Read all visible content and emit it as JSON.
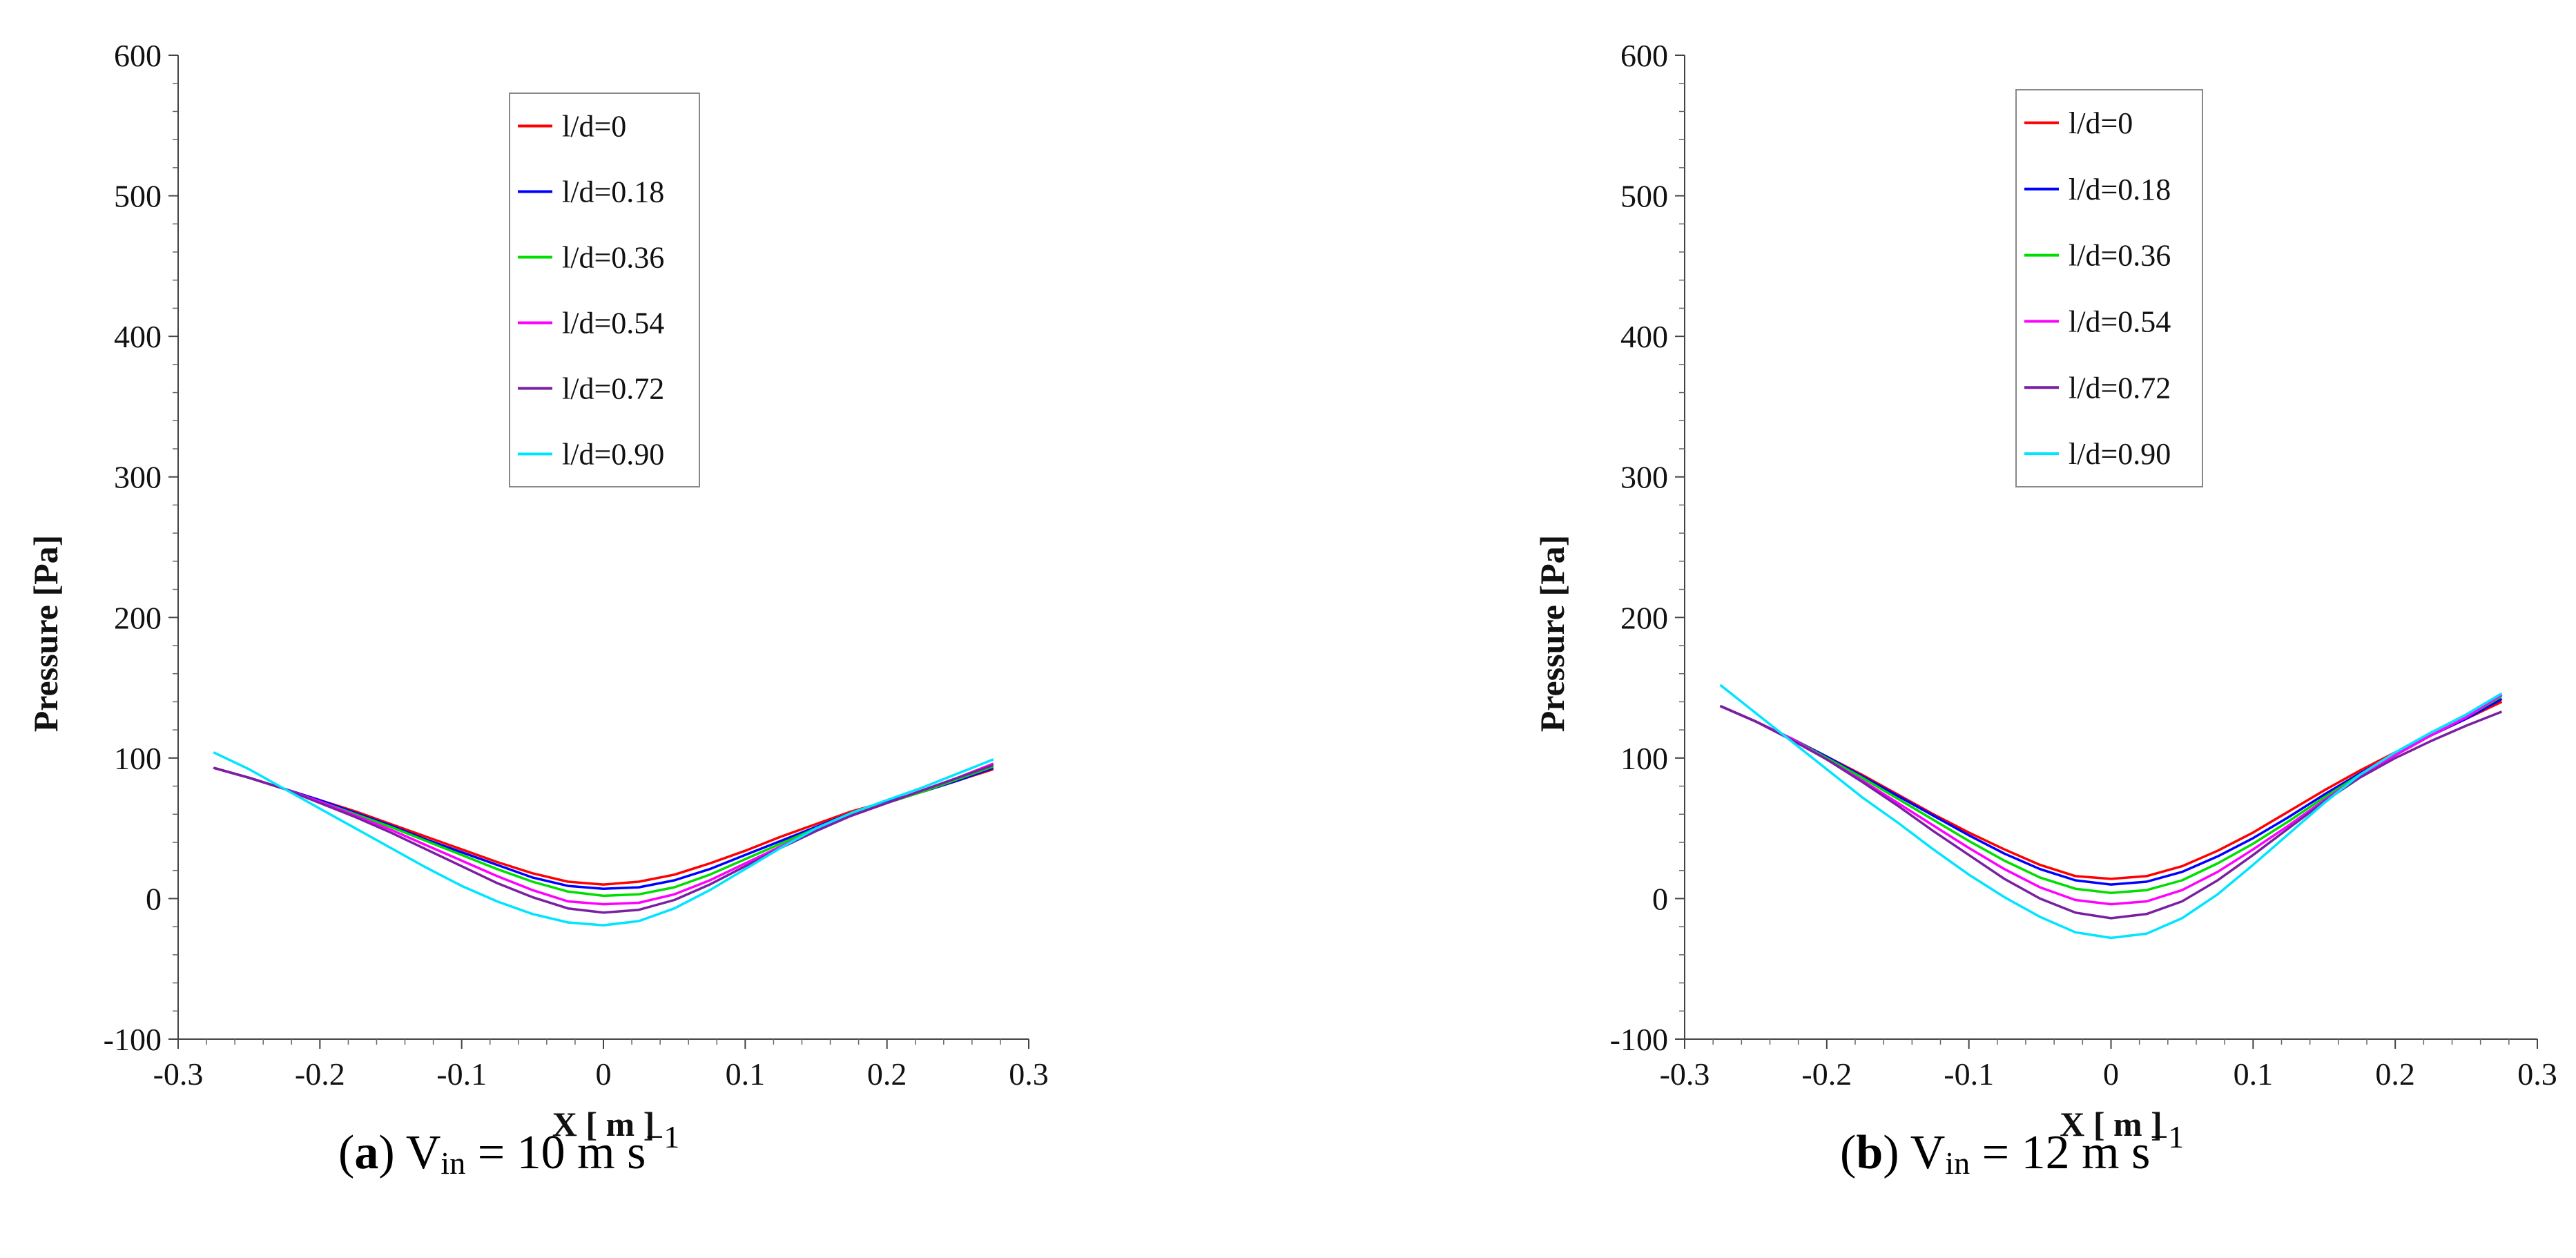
{
  "chart_data": [
    {
      "type": "line",
      "panel": "a",
      "xlabel": "X [ m ]",
      "ylabel": "Pressure [Pa]",
      "xlim": [
        -0.3,
        0.3
      ],
      "ylim": [
        -100,
        600
      ],
      "xticks": [
        -0.3,
        -0.2,
        -0.1,
        0,
        0.1,
        0.2,
        0.3
      ],
      "yticks": [
        -100,
        0,
        100,
        200,
        300,
        400,
        500,
        600
      ],
      "legend_position": "top-center",
      "x": [
        -0.275,
        -0.25,
        -0.225,
        -0.2,
        -0.175,
        -0.15,
        -0.125,
        -0.1,
        -0.075,
        -0.05,
        -0.025,
        0,
        0.025,
        0.05,
        0.075,
        0.1,
        0.125,
        0.15,
        0.175,
        0.2,
        0.225,
        0.25,
        0.275
      ],
      "series": [
        {
          "name": "l/d=0",
          "color": "#ff0000",
          "values": [
            93,
            86,
            78,
            70,
            62,
            53,
            44,
            35,
            26,
            18,
            12,
            10,
            12,
            17,
            25,
            34,
            44,
            53,
            62,
            69,
            76,
            84,
            92
          ]
        },
        {
          "name": "l/d=0.18",
          "color": "#0000ff",
          "values": [
            93,
            86,
            78,
            70,
            61,
            52,
            42,
            33,
            24,
            15,
            9,
            7,
            8,
            13,
            21,
            31,
            41,
            51,
            61,
            69,
            76,
            84,
            93
          ]
        },
        {
          "name": "l/d=0.36",
          "color": "#00dd00",
          "values": [
            93,
            86,
            78,
            69,
            60,
            51,
            41,
            31,
            21,
            12,
            5,
            2,
            3,
            8,
            17,
            28,
            39,
            50,
            60,
            68,
            76,
            85,
            94
          ]
        },
        {
          "name": "l/d=0.54",
          "color": "#ff00ff",
          "values": [
            93,
            86,
            78,
            69,
            59,
            49,
            38,
            27,
            16,
            6,
            -2,
            -4,
            -3,
            3,
            13,
            25,
            37,
            49,
            59,
            68,
            77,
            86,
            96
          ]
        },
        {
          "name": "l/d=0.72",
          "color": "#7a1fa2",
          "values": [
            93,
            86,
            78,
            68,
            58,
            47,
            35,
            23,
            11,
            1,
            -7,
            -10,
            -8,
            -1,
            10,
            23,
            36,
            48,
            59,
            68,
            77,
            86,
            95
          ]
        },
        {
          "name": "l/d=0.90",
          "color": "#00e5ff",
          "values": [
            104,
            92,
            78,
            64,
            50,
            36,
            22,
            9,
            -2,
            -11,
            -17,
            -19,
            -16,
            -7,
            6,
            21,
            36,
            50,
            61,
            70,
            79,
            89,
            99
          ]
        }
      ]
    },
    {
      "type": "line",
      "panel": "b",
      "xlabel": "X [ m ]",
      "ylabel": "Pressure [Pa]",
      "xlim": [
        -0.3,
        0.3
      ],
      "ylim": [
        -100,
        600
      ],
      "xticks": [
        -0.3,
        -0.2,
        -0.1,
        0,
        0.1,
        0.2,
        0.3
      ],
      "yticks": [
        -100,
        0,
        100,
        200,
        300,
        400,
        500,
        600
      ],
      "legend_position": "top-center",
      "x": [
        -0.275,
        -0.25,
        -0.225,
        -0.2,
        -0.175,
        -0.15,
        -0.125,
        -0.1,
        -0.075,
        -0.05,
        -0.025,
        0,
        0.025,
        0.05,
        0.075,
        0.1,
        0.125,
        0.15,
        0.175,
        0.2,
        0.225,
        0.25,
        0.275
      ],
      "series": [
        {
          "name": "l/d=0",
          "color": "#ff0000",
          "values": [
            137,
            126,
            114,
            101,
            88,
            74,
            60,
            47,
            35,
            24,
            16,
            14,
            16,
            23,
            34,
            47,
            62,
            77,
            91,
            104,
            116,
            128,
            140
          ]
        },
        {
          "name": "l/d=0.18",
          "color": "#0000ff",
          "values": [
            137,
            126,
            114,
            101,
            87,
            73,
            59,
            45,
            32,
            21,
            13,
            10,
            12,
            19,
            30,
            43,
            58,
            74,
            89,
            103,
            116,
            128,
            142
          ]
        },
        {
          "name": "l/d=0.36",
          "color": "#00dd00",
          "values": [
            137,
            126,
            114,
            100,
            86,
            71,
            56,
            41,
            27,
            15,
            7,
            4,
            6,
            13,
            25,
            39,
            55,
            72,
            88,
            102,
            116,
            129,
            144
          ]
        },
        {
          "name": "l/d=0.54",
          "color": "#ff00ff",
          "values": [
            137,
            126,
            114,
            99,
            84,
            68,
            52,
            36,
            21,
            8,
            -1,
            -4,
            -2,
            6,
            19,
            35,
            52,
            70,
            87,
            102,
            116,
            129,
            145
          ]
        },
        {
          "name": "l/d=0.72",
          "color": "#7a1fa2",
          "values": [
            137,
            126,
            113,
            99,
            83,
            66,
            48,
            31,
            14,
            0,
            -10,
            -14,
            -11,
            -2,
            13,
            31,
            50,
            69,
            86,
            100,
            112,
            123,
            133
          ]
        },
        {
          "name": "l/d=0.90",
          "color": "#00e5ff",
          "values": [
            152,
            132,
            112,
            92,
            72,
            54,
            35,
            17,
            1,
            -13,
            -24,
            -28,
            -25,
            -14,
            3,
            24,
            46,
            68,
            88,
            104,
            118,
            131,
            146
          ]
        }
      ]
    }
  ],
  "captions": {
    "a": {
      "letter": "a",
      "var": "V",
      "sub": "in",
      "text": " = 10 m s",
      "sup": "−1"
    },
    "b": {
      "letter": "b",
      "var": "V",
      "sub": "in",
      "text": " = 12 m s",
      "sup": "−1"
    }
  }
}
